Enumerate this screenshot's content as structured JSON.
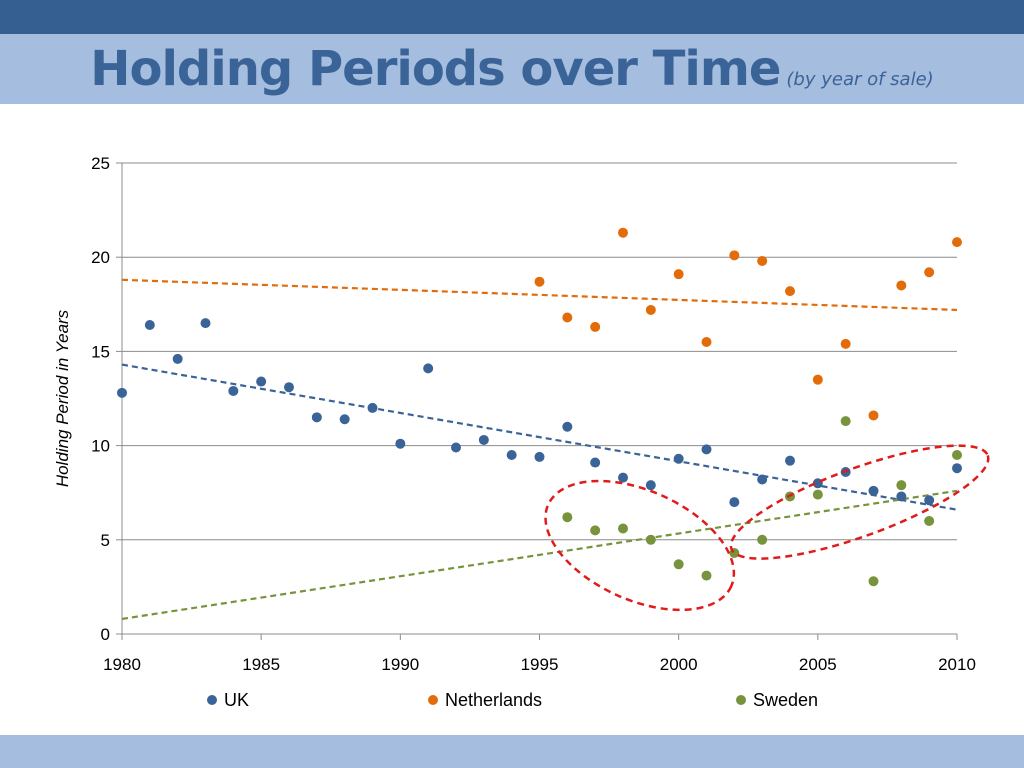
{
  "slide": {
    "title": "Holding Periods over Time",
    "subtitle": "(by year of sale)"
  },
  "colors": {
    "top_band": "#355F91",
    "title_band": "#A5BDDE",
    "bottom_band": "#A5BDDE",
    "title_text": "#3A6497",
    "highlight_ellipse": "#E01B1B"
  },
  "chart_data": {
    "type": "scatter",
    "title": "",
    "xlabel": "",
    "ylabel": "Holding Period in Years",
    "xlim": [
      1980,
      2010
    ],
    "ylim": [
      0,
      25
    ],
    "xticks": [
      1980,
      1985,
      1990,
      1995,
      2000,
      2005,
      2010
    ],
    "yticks": [
      0,
      5,
      10,
      15,
      20,
      25
    ],
    "grid": "horizontal",
    "legend_position": "bottom",
    "series": [
      {
        "name": "UK",
        "color": "#3A6497",
        "points": [
          [
            1980,
            12.8
          ],
          [
            1981,
            16.4
          ],
          [
            1982,
            14.6
          ],
          [
            1983,
            16.5
          ],
          [
            1984,
            12.9
          ],
          [
            1985,
            13.4
          ],
          [
            1986,
            13.1
          ],
          [
            1987,
            11.5
          ],
          [
            1988,
            11.4
          ],
          [
            1989,
            12.0
          ],
          [
            1990,
            10.1
          ],
          [
            1991,
            14.1
          ],
          [
            1992,
            9.9
          ],
          [
            1993,
            10.3
          ],
          [
            1994,
            9.5
          ],
          [
            1995,
            9.4
          ],
          [
            1996,
            11.0
          ],
          [
            1997,
            9.1
          ],
          [
            1998,
            8.3
          ],
          [
            1999,
            7.9
          ],
          [
            2000,
            9.3
          ],
          [
            2001,
            9.8
          ],
          [
            2002,
            7.0
          ],
          [
            2003,
            8.2
          ],
          [
            2004,
            9.2
          ],
          [
            2005,
            8.0
          ],
          [
            2006,
            8.6
          ],
          [
            2007,
            7.6
          ],
          [
            2008,
            7.3
          ],
          [
            2009,
            7.1
          ],
          [
            2010,
            8.8
          ]
        ],
        "trendline": [
          [
            1980,
            14.3
          ],
          [
            2010,
            6.6
          ]
        ]
      },
      {
        "name": "Netherlands",
        "color": "#E36C0A",
        "points": [
          [
            1995,
            18.7
          ],
          [
            1996,
            16.8
          ],
          [
            1997,
            16.3
          ],
          [
            1998,
            21.3
          ],
          [
            1999,
            17.2
          ],
          [
            2000,
            19.1
          ],
          [
            2001,
            15.5
          ],
          [
            2002,
            20.1
          ],
          [
            2003,
            19.8
          ],
          [
            2004,
            18.2
          ],
          [
            2005,
            13.5
          ],
          [
            2006,
            15.4
          ],
          [
            2007,
            11.6
          ],
          [
            2008,
            18.5
          ],
          [
            2009,
            19.2
          ],
          [
            2010,
            20.8
          ]
        ],
        "trendline": [
          [
            1980,
            18.8
          ],
          [
            2010,
            17.2
          ]
        ]
      },
      {
        "name": "Sweden",
        "color": "#77933C",
        "points": [
          [
            1996,
            6.2
          ],
          [
            1997,
            5.5
          ],
          [
            1998,
            5.6
          ],
          [
            1999,
            5.0
          ],
          [
            2000,
            3.7
          ],
          [
            2001,
            3.1
          ],
          [
            2002,
            4.3
          ],
          [
            2003,
            5.0
          ],
          [
            2004,
            7.3
          ],
          [
            2005,
            7.4
          ],
          [
            2006,
            11.3
          ],
          [
            2007,
            2.8
          ],
          [
            2008,
            7.9
          ],
          [
            2009,
            6.0
          ],
          [
            2010,
            9.5
          ]
        ],
        "trendline": [
          [
            1980,
            0.8
          ],
          [
            2010,
            7.6
          ]
        ]
      }
    ],
    "annotations": [
      {
        "type": "ellipse",
        "center": [
          1998.6,
          4.7
        ],
        "half_axes": [
          3.6,
          2.9
        ],
        "rotation_deg": 24
      },
      {
        "type": "ellipse",
        "center": [
          2006.5,
          7.0
        ],
        "half_axes": [
          4.9,
          1.8
        ],
        "rotation_deg": -20
      }
    ]
  }
}
